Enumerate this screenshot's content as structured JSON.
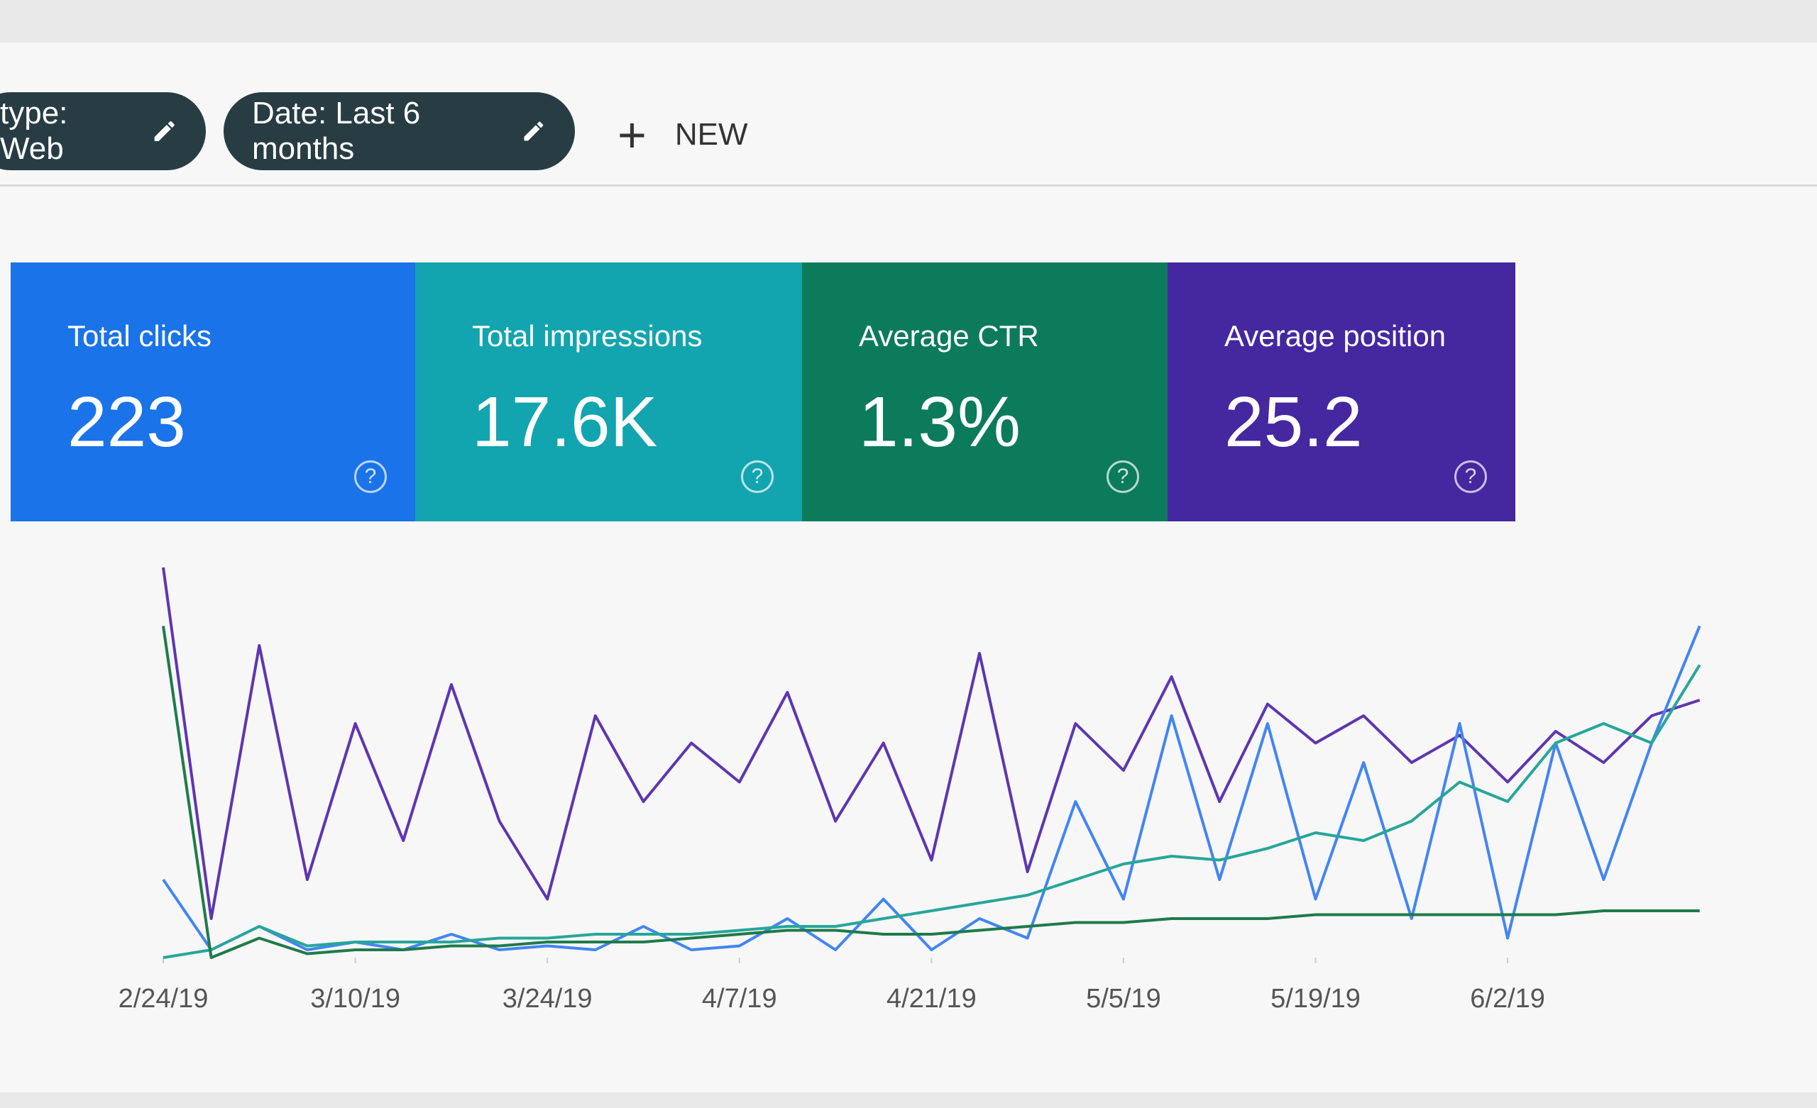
{
  "filters": [
    {
      "label": "type: Web"
    },
    {
      "label": "Date: Last 6 months"
    }
  ],
  "new_button": "NEW",
  "metrics": [
    {
      "title": "Total clicks",
      "value": "223",
      "color": "#1a73e8"
    },
    {
      "title": "Total impressions",
      "value": "17.6K",
      "color": "#12a4af"
    },
    {
      "title": "Average CTR",
      "value": "1.3%",
      "color": "#0b7b5b"
    },
    {
      "title": "Average position",
      "value": "25.2",
      "color": "#4527a0"
    }
  ],
  "chart_data": {
    "type": "line",
    "xlim": [
      0,
      34
    ],
    "ylim": [
      0,
      100
    ],
    "xticks": [
      {
        "value": 0,
        "label": "2/24/19"
      },
      {
        "value": 4,
        "label": "3/10/19"
      },
      {
        "value": 8,
        "label": "3/24/19"
      },
      {
        "value": 12,
        "label": "4/7/19"
      },
      {
        "value": 16,
        "label": "4/21/19"
      },
      {
        "value": 20,
        "label": "5/5/19"
      },
      {
        "value": 24,
        "label": "5/19/19"
      },
      {
        "value": 28,
        "label": "6/2/19"
      }
    ],
    "series": [
      {
        "color": "#5e35b1",
        "values": [
          100,
          10,
          80,
          20,
          60,
          30,
          70,
          35,
          15,
          62,
          40,
          55,
          45,
          68,
          35,
          55,
          25,
          78,
          22,
          60,
          48,
          72,
          40,
          65,
          55,
          62,
          50,
          57,
          45,
          58,
          50,
          62,
          66
        ]
      },
      {
        "color": "#4285f4",
        "values": [
          20,
          2,
          8,
          2,
          4,
          2,
          6,
          2,
          3,
          2,
          8,
          2,
          3,
          10,
          2,
          15,
          2,
          10,
          5,
          40,
          15,
          62,
          20,
          60,
          15,
          50,
          10,
          60,
          5,
          55,
          20,
          55,
          85
        ]
      },
      {
        "color": "#26a69a",
        "values": [
          0,
          2,
          8,
          3,
          4,
          4,
          4,
          5,
          5,
          6,
          6,
          6,
          7,
          8,
          8,
          10,
          12,
          14,
          16,
          20,
          24,
          26,
          25,
          28,
          32,
          30,
          35,
          45,
          40,
          55,
          60,
          55,
          75
        ]
      },
      {
        "color": "#1e7b4a",
        "values": [
          85,
          0,
          5,
          1,
          2,
          2,
          3,
          3,
          4,
          4,
          4,
          5,
          6,
          7,
          7,
          6,
          6,
          7,
          8,
          9,
          9,
          10,
          10,
          10,
          11,
          11,
          11,
          11,
          11,
          11,
          12,
          12,
          12
        ]
      }
    ]
  }
}
